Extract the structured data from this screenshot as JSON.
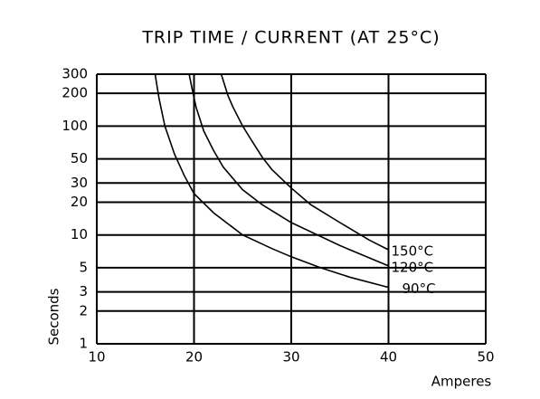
{
  "chart_data": {
    "type": "line",
    "title": "TRIP TIME / CURRENT (AT 25°C)",
    "x_label": "Amperes",
    "y_label": "Seconds",
    "xlim": [
      10,
      50
    ],
    "xticks": [
      10,
      20,
      30,
      40,
      50
    ],
    "ylim": [
      1,
      300
    ],
    "yticks": [
      1,
      2,
      3,
      5,
      10,
      20,
      30,
      50,
      100,
      200,
      300
    ],
    "log_y": true,
    "grid": true,
    "series": [
      {
        "name": "150°C",
        "color": "#000000",
        "x": [
          22.8,
          23.5,
          24,
          25,
          26,
          27,
          28,
          30,
          32,
          35,
          38,
          40
        ],
        "values": [
          300,
          190,
          150,
          100,
          72,
          52,
          40,
          27,
          19,
          13,
          9,
          7.3
        ]
      },
      {
        "name": "120°C",
        "color": "#000000",
        "x": [
          19.5,
          19.8,
          20.2,
          21,
          22,
          23,
          25,
          27,
          30,
          35,
          40
        ],
        "values": [
          300,
          220,
          150,
          90,
          60,
          42,
          26,
          19,
          13,
          8,
          5.2
        ]
      },
      {
        "name": "90°C",
        "color": "#000000",
        "x": [
          16,
          16.4,
          17,
          18,
          19,
          20,
          22,
          25,
          28,
          30,
          33,
          36,
          40
        ],
        "values": [
          300,
          180,
          100,
          55,
          35,
          24,
          16,
          10,
          7.5,
          6.3,
          5,
          4.1,
          3.3
        ]
      }
    ]
  }
}
